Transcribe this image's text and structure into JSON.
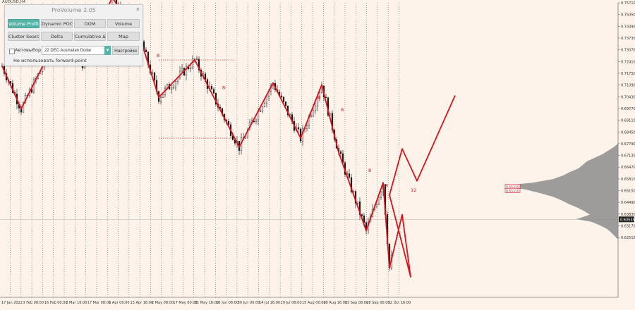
{
  "symbol_label": "AUDUSD,H4",
  "colors": {
    "background": "#fdf3ea",
    "candles": "#111111",
    "wave": "#d8141d",
    "profile": "#8c8c8c",
    "accent": "#58b3a8"
  },
  "panel": {
    "title": "ProVolume 2.05",
    "close": "×",
    "buttons": [
      {
        "label": "Volume Profile",
        "active": true
      },
      {
        "label": "Dynamic POC",
        "active": false
      },
      {
        "label": "DOM",
        "active": false
      },
      {
        "label": "Volume",
        "active": false
      },
      {
        "label": "Cluster Search",
        "active": false
      },
      {
        "label": "Delta",
        "active": false
      },
      {
        "label": "Cumulative Δ",
        "active": false
      },
      {
        "label": "Map",
        "active": false
      }
    ],
    "auto_select_label": "Автовыбор",
    "instrument": "22 DEC Australian Dollar",
    "settings_label": "Настройки",
    "forward_note": "Не использовать forward-point"
  },
  "chart_data": {
    "type": "candlestick",
    "symbol": "AUDUSD",
    "timeframe": "H4",
    "y_ticks": [
      "0.75710",
      "0.75050",
      "0.74390",
      "0.73730",
      "0.73070",
      "0.72410",
      "0.71750",
      "0.71090",
      "0.70430",
      "0.69770",
      "0.69110",
      "0.68450",
      "0.67790",
      "0.67130",
      "0.66470",
      "0.65810",
      "0.65150",
      "0.64490",
      "0.63830",
      "0.63170",
      "0.62510"
    ],
    "x_ticks": [
      "17 Jan 2022",
      "3 Feb 08:00",
      "16 Feb 00:00",
      "2 Mar 16:00",
      "17 Mar 08:00",
      "1 Apr 00:00",
      "15 Apr 16:00",
      "2 May 08:00",
      "17 May 00:00",
      "31 May 16:00",
      "15 Jun 08:00",
      "30 Jun 00:00",
      "14 Jul 16:00",
      "29 Jul 08:00",
      "15 Aug 00:00",
      "29 Aug 16:00",
      "13 Sep 08:00",
      "28 Sep 00:00",
      "12 Oct 16:00"
    ],
    "current_price": "0.63535",
    "profile_labels": [
      "0.65335",
      "0.65310"
    ],
    "wave_labels": [
      "8",
      "8",
      "8",
      "8",
      "8",
      "8",
      "8",
      "12"
    ],
    "wave_path": [
      {
        "x": 0,
        "y": 0.7215
      },
      {
        "x": 9,
        "y": 0.6975
      },
      {
        "x": 30,
        "y": 0.747
      },
      {
        "x": 38,
        "y": 0.723
      },
      {
        "x": 52,
        "y": 0.76
      },
      {
        "x": 65,
        "y": 0.738
      },
      {
        "x": 74,
        "y": 0.704
      },
      {
        "x": 91,
        "y": 0.725
      },
      {
        "x": 112,
        "y": 0.676
      },
      {
        "x": 128,
        "y": 0.712
      },
      {
        "x": 141,
        "y": 0.681
      },
      {
        "x": 151,
        "y": 0.711
      },
      {
        "x": 159,
        "y": 0.673
      },
      {
        "x": 172,
        "y": 0.629
      },
      {
        "x": 180,
        "y": 0.656
      },
      {
        "x": 183,
        "y": 0.608
      },
      {
        "x": 189,
        "y": 0.638
      },
      {
        "x": 193,
        "y": 0.603
      },
      {
        "x": 183,
        "y": 0.649
      },
      {
        "x": 189,
        "y": 0.675
      },
      {
        "x": 196,
        "y": 0.657
      },
      {
        "x": 214,
        "y": 0.705
      }
    ],
    "box_top": 0.725,
    "box_bottom": 0.681
  }
}
